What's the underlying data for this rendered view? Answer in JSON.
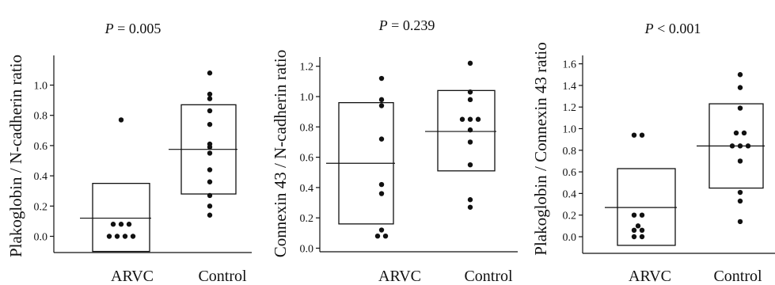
{
  "chart_data": [
    {
      "type": "scatter",
      "annotation": {
        "p_symbol": "P",
        "p_rest": " = 0.005"
      },
      "ylabel": "Plakoglobin / N-cadherin ratio",
      "categories": [
        "ARVC",
        "Control"
      ],
      "yticks": [
        0.0,
        0.2,
        0.4,
        0.6,
        0.8,
        1.0
      ],
      "ytick_labels": [
        "0.0",
        "0.2",
        "0.4",
        "0.6",
        "0.8",
        "1.0"
      ],
      "ylim": [
        -0.1,
        1.17
      ],
      "groups": [
        {
          "name": "ARVC",
          "box": [
            -0.1,
            0.35
          ],
          "mean": 0.12,
          "points": [
            0.77,
            0.08,
            0.08,
            0.08,
            0.0,
            0.0,
            0.0,
            0.0
          ]
        },
        {
          "name": "Control",
          "box": [
            0.28,
            0.87
          ],
          "mean": 0.575,
          "points": [
            1.08,
            0.94,
            0.91,
            0.83,
            0.74,
            0.61,
            0.59,
            0.55,
            0.44,
            0.36,
            0.27,
            0.2,
            0.14
          ]
        }
      ]
    },
    {
      "type": "scatter",
      "annotation": {
        "p_symbol": "P",
        "p_rest": " = 0.239"
      },
      "ylabel": "Connexin 43 / N-cadherin ratio",
      "categories": [
        "ARVC",
        "Control"
      ],
      "yticks": [
        0.0,
        0.2,
        0.4,
        0.6,
        0.8,
        1.0,
        1.2
      ],
      "ytick_labels": [
        "0.0",
        "0.2",
        "0.4",
        "0.6",
        "0.8",
        "1.0",
        "1.2"
      ],
      "ylim": [
        -0.05,
        1.33
      ],
      "groups": [
        {
          "name": "ARVC",
          "box": [
            0.16,
            0.96
          ],
          "mean": 0.56,
          "points": [
            1.12,
            0.98,
            0.94,
            0.72,
            0.42,
            0.36,
            0.12,
            0.08,
            0.08
          ]
        },
        {
          "name": "Control",
          "box": [
            0.51,
            1.04
          ],
          "mean": 0.77,
          "points": [
            1.22,
            1.03,
            0.98,
            0.85,
            0.85,
            0.85,
            0.78,
            0.7,
            0.55,
            0.32,
            0.27
          ]
        }
      ]
    },
    {
      "type": "scatter",
      "annotation": {
        "p_symbol": "P",
        "p_rest": " < 0.001"
      },
      "ylabel": "Plakoglobin / Connexin 43 ratio",
      "categories": [
        "ARVC",
        "Control"
      ],
      "yticks": [
        0.0,
        0.2,
        0.4,
        0.6,
        0.8,
        1.0,
        1.2,
        1.4,
        1.6
      ],
      "ytick_labels": [
        "0.0",
        "0.2",
        "0.4",
        "0.6",
        "0.8",
        "1.0",
        "1.2",
        "1.4",
        "1.6"
      ],
      "ylim": [
        -0.13,
        1.63
      ],
      "groups": [
        {
          "name": "ARVC",
          "box": [
            -0.08,
            0.63
          ],
          "mean": 0.27,
          "points": [
            0.94,
            0.94,
            0.2,
            0.2,
            0.1,
            0.06,
            0.06,
            0.0,
            0.0
          ]
        },
        {
          "name": "Control",
          "box": [
            0.45,
            1.23
          ],
          "mean": 0.84,
          "points": [
            1.5,
            1.38,
            1.19,
            0.96,
            0.96,
            0.84,
            0.84,
            0.84,
            0.7,
            0.41,
            0.33,
            0.14
          ]
        }
      ]
    }
  ]
}
